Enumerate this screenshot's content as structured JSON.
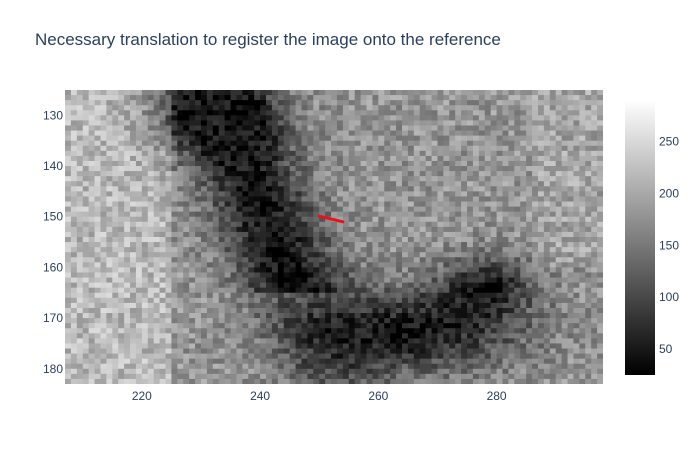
{
  "chart_data": {
    "type": "heatmap",
    "title": "Necessary translation to register the image onto the reference",
    "xlabel": "",
    "ylabel": "",
    "x_range": [
      207,
      298
    ],
    "y_range": [
      125,
      183
    ],
    "y_reversed": true,
    "x_ticks": [
      220,
      240,
      260,
      280
    ],
    "y_ticks": [
      130,
      140,
      150,
      160,
      170,
      180
    ],
    "colorscale": "greys",
    "colorscale_colors": [
      "#000000",
      "#ffffff"
    ],
    "color_range": [
      25,
      290
    ],
    "colorbar_ticks": [
      50,
      100,
      150,
      200,
      250
    ],
    "translation_arrow": {
      "color": "#e8121a",
      "start": [
        250.0,
        149.9
      ],
      "end": [
        254.0,
        151.0
      ]
    }
  }
}
